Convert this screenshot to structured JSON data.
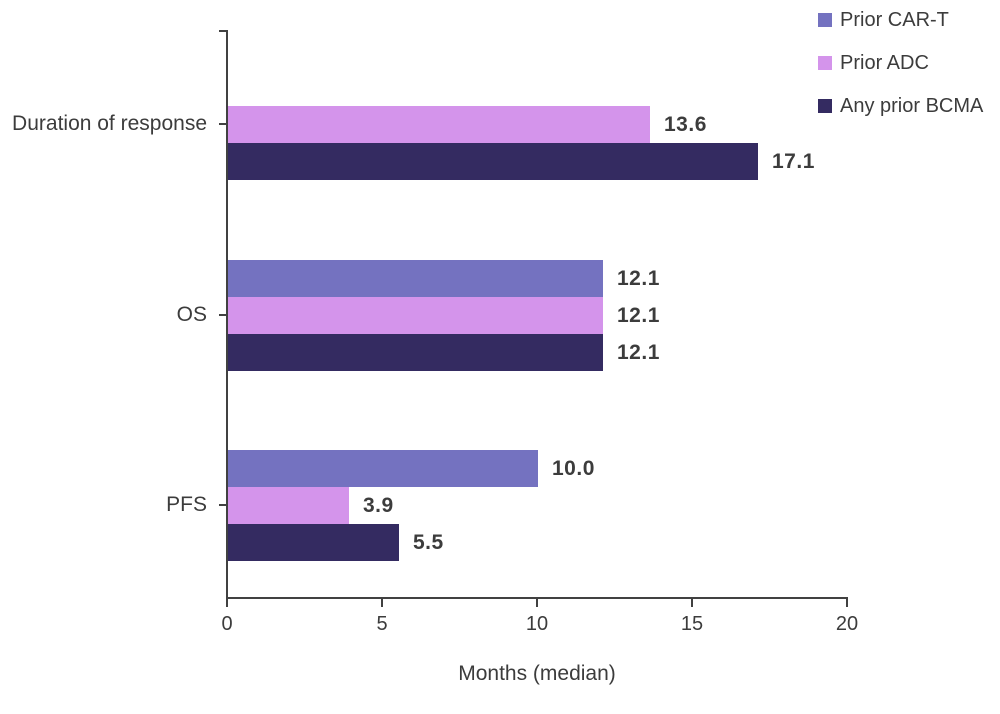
{
  "chart_data": {
    "type": "bar",
    "orientation": "horizontal",
    "title": "",
    "xlabel": "Months (median)",
    "ylabel": "",
    "xlim": [
      0,
      20
    ],
    "xtick_values": [
      0,
      5,
      10,
      15,
      20
    ],
    "xticks": [
      "0",
      "5",
      "10",
      "15",
      "20"
    ],
    "categories": [
      "Duration of response",
      "OS",
      "PFS"
    ],
    "series": [
      {
        "name": "Prior CAR-T",
        "color": "#7472C0",
        "values": [
          null,
          12.1,
          10.0
        ],
        "labels": [
          "",
          "12.1",
          "10.0"
        ]
      },
      {
        "name": "Prior ADC",
        "color": "#D494EB",
        "values": [
          13.6,
          12.1,
          3.9
        ],
        "labels": [
          "13.6",
          "12.1",
          "3.9"
        ]
      },
      {
        "name": "Any prior BCMA",
        "color": "#342B61",
        "values": [
          17.1,
          12.1,
          5.5
        ],
        "labels": [
          "17.1",
          "12.1",
          "5.5"
        ]
      }
    ],
    "legend_position": "top-right",
    "grid": false
  },
  "styles": {
    "text_color": "#3C3C3C",
    "axis_color": "#414141",
    "background": "#FFFFFF"
  }
}
